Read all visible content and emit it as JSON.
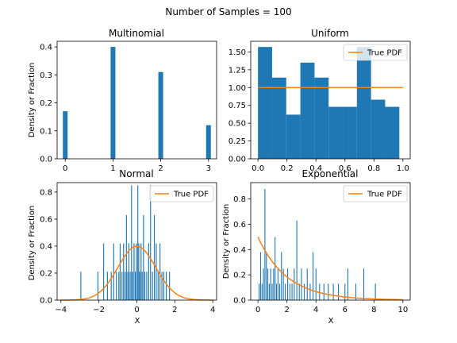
{
  "figure": {
    "suptitle": "Number of Samples = 100",
    "bar_color": "#1f77b4",
    "pdf_color": "#ff7f0e"
  },
  "chart_data": [
    {
      "type": "bar",
      "title": "Multinomial",
      "xlabel": "",
      "ylabel": "Density or Fraction",
      "xlim": [
        -0.17,
        3.17
      ],
      "ylim": [
        0,
        0.42
      ],
      "xticks": [
        0,
        1,
        2,
        3
      ],
      "yticks": [
        0.0,
        0.1,
        0.2,
        0.3,
        0.4
      ],
      "bar_width": 0.1,
      "bars": [
        {
          "x": 0,
          "y": 0.17
        },
        {
          "x": 1,
          "y": 0.4
        },
        {
          "x": 2,
          "y": 0.31
        },
        {
          "x": 3,
          "y": 0.12
        }
      ]
    },
    {
      "type": "bar",
      "title": "Uniform",
      "xlabel": "",
      "ylabel": "",
      "xlim": [
        -0.05,
        1.05
      ],
      "ylim": [
        0,
        1.65
      ],
      "xticks": [
        0.0,
        0.2,
        0.4,
        0.6,
        0.8,
        1.0
      ],
      "yticks": [
        0.0,
        0.25,
        0.5,
        0.75,
        1.0,
        1.25,
        1.5
      ],
      "bin_edges": [
        0.0,
        0.0975,
        0.195,
        0.2925,
        0.39,
        0.4875,
        0.585,
        0.6825,
        0.78,
        0.8775,
        0.975
      ],
      "bin_values": [
        1.57,
        1.14,
        0.62,
        1.35,
        1.14,
        0.73,
        0.73,
        1.57,
        0.83,
        0.73
      ],
      "legend": {
        "label": "True PDF",
        "loc": "upper right"
      },
      "pdf": {
        "x": [
          0.0,
          1.0
        ],
        "y": [
          1.0,
          1.0
        ]
      }
    },
    {
      "type": "bar",
      "title": "Normal",
      "xlabel": "X",
      "ylabel": "Density or Fraction",
      "xlim": [
        -4.2,
        4.2
      ],
      "ylim": [
        0,
        0.87
      ],
      "xticks": [
        -4,
        -2,
        0,
        2,
        4
      ],
      "yticks": [
        0.0,
        0.2,
        0.4,
        0.6,
        0.8
      ],
      "bar_width": 0.048,
      "bars": [
        {
          "x": -2.95,
          "y": 0.21
        },
        {
          "x": -2.05,
          "y": 0.21
        },
        {
          "x": -1.75,
          "y": 0.42
        },
        {
          "x": -1.55,
          "y": 0.21
        },
        {
          "x": -1.35,
          "y": 0.21
        },
        {
          "x": -1.22,
          "y": 0.42
        },
        {
          "x": -1.08,
          "y": 0.21
        },
        {
          "x": -0.95,
          "y": 0.21
        },
        {
          "x": -0.88,
          "y": 0.42
        },
        {
          "x": -0.78,
          "y": 0.21
        },
        {
          "x": -0.7,
          "y": 0.42
        },
        {
          "x": -0.62,
          "y": 0.21
        },
        {
          "x": -0.55,
          "y": 0.63
        },
        {
          "x": -0.48,
          "y": 0.21
        },
        {
          "x": -0.42,
          "y": 0.42
        },
        {
          "x": -0.35,
          "y": 0.21
        },
        {
          "x": -0.28,
          "y": 0.85
        },
        {
          "x": -0.22,
          "y": 0.21
        },
        {
          "x": -0.15,
          "y": 0.42
        },
        {
          "x": -0.08,
          "y": 0.21
        },
        {
          "x": -0.02,
          "y": 0.42
        },
        {
          "x": 0.05,
          "y": 0.85
        },
        {
          "x": 0.1,
          "y": 0.42
        },
        {
          "x": 0.15,
          "y": 0.21
        },
        {
          "x": 0.22,
          "y": 0.42
        },
        {
          "x": 0.28,
          "y": 0.21
        },
        {
          "x": 0.35,
          "y": 0.63
        },
        {
          "x": 0.42,
          "y": 0.21
        },
        {
          "x": 0.52,
          "y": 0.21
        },
        {
          "x": 0.62,
          "y": 0.42
        },
        {
          "x": 0.72,
          "y": 0.85
        },
        {
          "x": 0.82,
          "y": 0.21
        },
        {
          "x": 0.92,
          "y": 0.63
        },
        {
          "x": 1.02,
          "y": 0.42
        },
        {
          "x": 1.12,
          "y": 0.21
        },
        {
          "x": 1.22,
          "y": 0.42
        },
        {
          "x": 1.32,
          "y": 0.21
        },
        {
          "x": 1.42,
          "y": 0.21
        },
        {
          "x": 1.55,
          "y": 0.21
        },
        {
          "x": 1.72,
          "y": 0.21
        }
      ],
      "legend": {
        "label": "True PDF",
        "loc": "upper right"
      },
      "pdf": {
        "function": "normal",
        "mean": 0,
        "std": 1,
        "x_range": [
          -4,
          4
        ]
      }
    },
    {
      "type": "bar",
      "title": "Exponential",
      "xlabel": "X",
      "ylabel": "Density or Fraction",
      "xlim": [
        -0.5,
        10.5
      ],
      "ylim": [
        0,
        0.93
      ],
      "xticks": [
        0,
        2,
        4,
        6,
        8,
        10
      ],
      "yticks": [
        0.0,
        0.2,
        0.4,
        0.6,
        0.8
      ],
      "bar_width": 0.06,
      "bars": [
        {
          "x": 0.08,
          "y": 0.13
        },
        {
          "x": 0.18,
          "y": 0.38
        },
        {
          "x": 0.28,
          "y": 0.13
        },
        {
          "x": 0.38,
          "y": 0.25
        },
        {
          "x": 0.48,
          "y": 0.88
        },
        {
          "x": 0.58,
          "y": 0.38
        },
        {
          "x": 0.68,
          "y": 0.25
        },
        {
          "x": 0.78,
          "y": 0.13
        },
        {
          "x": 0.88,
          "y": 0.25
        },
        {
          "x": 0.98,
          "y": 0.13
        },
        {
          "x": 1.08,
          "y": 0.25
        },
        {
          "x": 1.18,
          "y": 0.5
        },
        {
          "x": 1.28,
          "y": 0.13
        },
        {
          "x": 1.38,
          "y": 0.25
        },
        {
          "x": 1.5,
          "y": 0.13
        },
        {
          "x": 1.62,
          "y": 0.38
        },
        {
          "x": 1.75,
          "y": 0.25
        },
        {
          "x": 1.88,
          "y": 0.13
        },
        {
          "x": 2.05,
          "y": 0.25
        },
        {
          "x": 2.2,
          "y": 0.13
        },
        {
          "x": 2.35,
          "y": 0.13
        },
        {
          "x": 2.5,
          "y": 0.25
        },
        {
          "x": 2.68,
          "y": 0.63
        },
        {
          "x": 2.85,
          "y": 0.13
        },
        {
          "x": 3.0,
          "y": 0.25
        },
        {
          "x": 3.2,
          "y": 0.13
        },
        {
          "x": 3.4,
          "y": 0.25
        },
        {
          "x": 3.6,
          "y": 0.13
        },
        {
          "x": 3.8,
          "y": 0.38
        },
        {
          "x": 4.0,
          "y": 0.25
        },
        {
          "x": 4.25,
          "y": 0.13
        },
        {
          "x": 4.55,
          "y": 0.13
        },
        {
          "x": 4.85,
          "y": 0.13
        },
        {
          "x": 5.2,
          "y": 0.13
        },
        {
          "x": 5.55,
          "y": 0.13
        },
        {
          "x": 6.0,
          "y": 0.13
        },
        {
          "x": 6.2,
          "y": 0.25
        },
        {
          "x": 6.75,
          "y": 0.13
        },
        {
          "x": 7.3,
          "y": 0.25
        },
        {
          "x": 8.1,
          "y": 0.13
        }
      ],
      "legend": {
        "label": "True PDF",
        "loc": "upper right"
      },
      "pdf": {
        "function": "exponential",
        "rate": 0.5,
        "x_range": [
          0,
          10
        ]
      }
    }
  ]
}
